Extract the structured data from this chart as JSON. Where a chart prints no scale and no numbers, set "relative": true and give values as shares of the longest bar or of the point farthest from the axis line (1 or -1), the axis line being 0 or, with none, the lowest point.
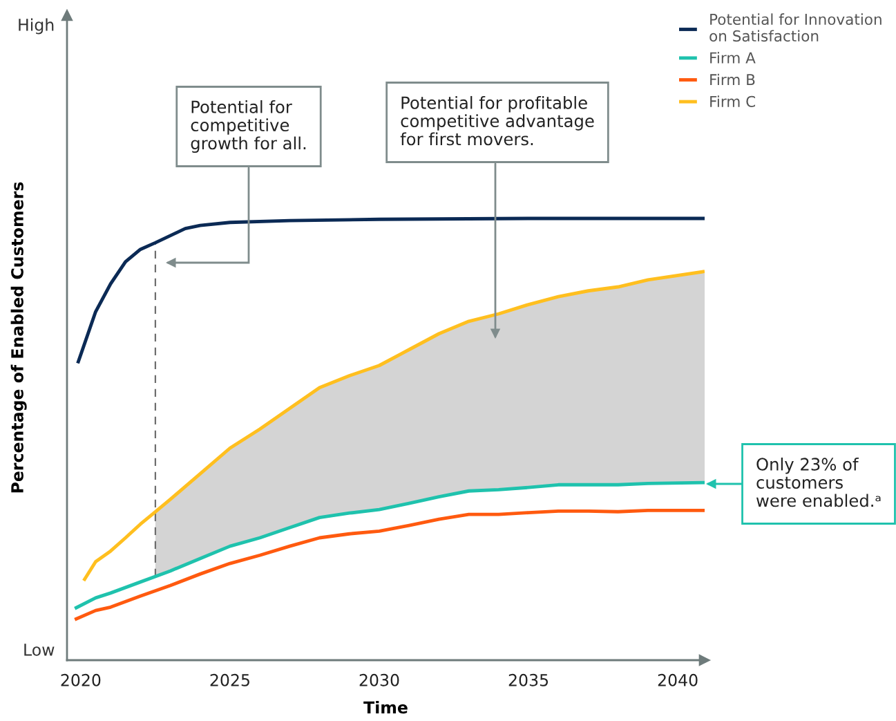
{
  "chart_data": {
    "type": "line",
    "relative": true,
    "xlabel": "Time",
    "ylabel": "Percentage of Enabled Customers",
    "xlim": [
      2019.54,
      2040.9
    ],
    "xticks": [
      2020,
      2025,
      2030,
      2035,
      2040
    ],
    "grid": false,
    "legend": "top right",
    "line_style": "solid",
    "marker": "none",
    "series": [
      {
        "name": "Potential for Innovation\non Satisfaction",
        "color": "#0b2a55",
        "x": [
          2019.9,
          2020.5,
          2021,
          2021.5,
          2022,
          2022.5,
          2023,
          2023.5,
          2024,
          2025,
          2027,
          2030,
          2035,
          2040.9
        ],
        "values": [
          0.672,
          0.789,
          0.852,
          0.902,
          0.93,
          0.945,
          0.961,
          0.977,
          0.984,
          0.991,
          0.995,
          0.998,
          1.0,
          1.0
        ]
      },
      {
        "name": "Firm A",
        "color": "#1fc2ad",
        "x": [
          2019.8,
          2020.5,
          2021,
          2022,
          2023,
          2024,
          2025,
          2026,
          2027,
          2028,
          2029,
          2030,
          2031,
          2032,
          2033,
          2034,
          2035,
          2036,
          2037,
          2038,
          2039,
          2040.9
        ],
        "values": [
          0.117,
          0.141,
          0.152,
          0.177,
          0.202,
          0.23,
          0.258,
          0.277,
          0.3,
          0.323,
          0.333,
          0.341,
          0.355,
          0.37,
          0.383,
          0.386,
          0.391,
          0.397,
          0.397,
          0.397,
          0.4,
          0.402
        ]
      },
      {
        "name": "Firm B",
        "color": "#ff5a0f",
        "x": [
          2019.8,
          2020.5,
          2021,
          2022,
          2023,
          2024,
          2025,
          2026,
          2027,
          2028,
          2029,
          2030,
          2031,
          2032,
          2033,
          2034,
          2035,
          2036,
          2037,
          2038,
          2039,
          2040.9
        ],
        "values": [
          0.092,
          0.1125,
          0.12,
          0.145,
          0.169,
          0.195,
          0.219,
          0.2375,
          0.258,
          0.277,
          0.286,
          0.292,
          0.305,
          0.319,
          0.33,
          0.33,
          0.334,
          0.3375,
          0.3375,
          0.336,
          0.339,
          0.339
        ]
      },
      {
        "name": "Firm C",
        "color": "#ffbf1f",
        "x": [
          2020.1,
          2020.5,
          2021,
          2021.5,
          2022,
          2022.5,
          2023,
          2024,
          2025,
          2026,
          2027,
          2028,
          2029,
          2030,
          2031,
          2032,
          2033,
          2034,
          2035,
          2036,
          2037,
          2038,
          2039,
          2040.9
        ],
        "values": [
          0.18,
          0.223,
          0.247,
          0.277,
          0.308,
          0.336,
          0.364,
          0.422,
          0.48,
          0.523,
          0.57,
          0.617,
          0.644,
          0.667,
          0.703,
          0.739,
          0.767,
          0.784,
          0.805,
          0.823,
          0.836,
          0.845,
          0.861,
          0.88
        ],
        "lower": [
          null,
          null,
          null,
          null,
          null,
          0.19,
          0.202,
          0.23,
          0.258,
          0.277,
          0.3,
          0.323,
          0.333,
          0.341,
          0.355,
          0.37,
          0.383,
          0.386,
          0.391,
          0.397,
          0.397,
          0.397,
          0.4,
          0.402
        ],
        "upper": [
          null,
          null,
          null,
          null,
          null,
          0.336,
          0.364,
          0.422,
          0.48,
          0.523,
          0.57,
          0.617,
          0.644,
          0.667,
          0.703,
          0.739,
          0.767,
          0.784,
          0.805,
          0.823,
          0.836,
          0.845,
          0.861,
          0.88
        ]
      }
    ],
    "ref_lines": [
      {
        "axis": "x",
        "value": 2022.5,
        "color": "#6e6e6e",
        "line_style": "dashed"
      }
    ],
    "annotations": [
      "High",
      "Low",
      "Potential for\ncompetitive\ngrowth for all.",
      "Potential for profitable\ncompetitive advantage\nfor first movers.",
      "Only 23% of\ncustomers\nwere enabled.ᵃ"
    ]
  }
}
